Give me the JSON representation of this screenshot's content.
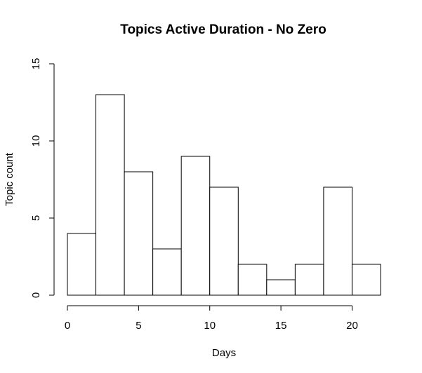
{
  "chart_data": {
    "type": "bar",
    "title": "Topics Active Duration - No Zero",
    "xlabel": "Days",
    "ylabel": "Topic count",
    "bins": [
      {
        "start": 0,
        "end": 2,
        "value": 4
      },
      {
        "start": 2,
        "end": 4,
        "value": 13
      },
      {
        "start": 4,
        "end": 6,
        "value": 8
      },
      {
        "start": 6,
        "end": 8,
        "value": 3
      },
      {
        "start": 8,
        "end": 10,
        "value": 9
      },
      {
        "start": 10,
        "end": 12,
        "value": 7
      },
      {
        "start": 12,
        "end": 14,
        "value": 2
      },
      {
        "start": 14,
        "end": 16,
        "value": 1
      },
      {
        "start": 16,
        "end": 18,
        "value": 2
      },
      {
        "start": 18,
        "end": 20,
        "value": 7
      },
      {
        "start": 20,
        "end": 22,
        "value": 2
      }
    ],
    "xlim": [
      0,
      22
    ],
    "ylim": [
      0,
      15
    ],
    "x_ticks": [
      "0",
      "5",
      "10",
      "15",
      "20"
    ],
    "y_ticks": [
      "0",
      "5",
      "10",
      "15"
    ],
    "grid": false,
    "legend": "none"
  }
}
